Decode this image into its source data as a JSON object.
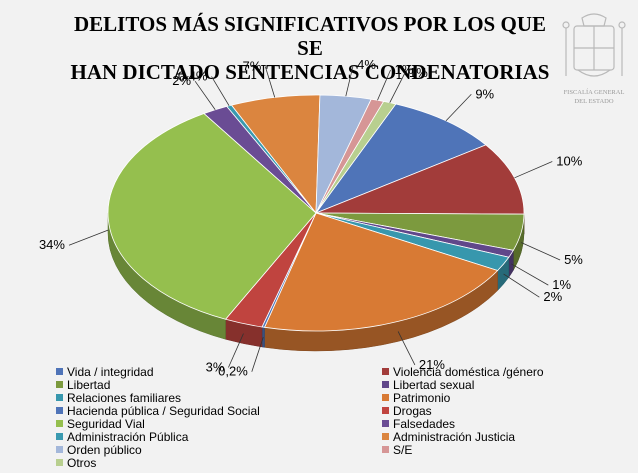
{
  "chart_data": {
    "type": "pie",
    "title": "DELITOS MÁS SIGNIFICATIVOS POR LOS QUE SE HAN DICTADO SENTENCIAS CONDENATORIAS",
    "legend_position": "bottom",
    "start_category": "Hacienda pública / Seguridad Social",
    "slices": [
      {
        "name": "Vida / integridad",
        "value": 9,
        "label": "9%",
        "color": "#4f74b8"
      },
      {
        "name": "Violencia doméstica /género",
        "value": 10,
        "label": "10%",
        "color": "#a23c3a"
      },
      {
        "name": "Libertad",
        "value": 5,
        "label": "5%",
        "color": "#7c9a3e"
      },
      {
        "name": "Libertad sexual",
        "value": 1,
        "label": "1%",
        "color": "#60478a"
      },
      {
        "name": "Relaciones familiares",
        "value": 2,
        "label": "2%",
        "color": "#3797ad"
      },
      {
        "name": "Patrimonio",
        "value": 21,
        "label": "21%",
        "color": "#d87a34"
      },
      {
        "name": "Hacienda pública / Seguridad Social",
        "value": 0.2,
        "label": "0,2%",
        "color": "#4f74b8"
      },
      {
        "name": "Drogas",
        "value": 3,
        "label": "3%",
        "color": "#c0443f"
      },
      {
        "name": "Seguridad Vial",
        "value": 34,
        "label": "34%",
        "color": "#95bf4e"
      },
      {
        "name": "Falsedades",
        "value": 2,
        "label": "2%",
        "color": "#6a4c94"
      },
      {
        "name": "Administración Pública",
        "value": 0.4,
        "label": "0,4%",
        "color": "#3a9ab0"
      },
      {
        "name": "Administración Justicia",
        "value": 7,
        "label": "7%",
        "color": "#db853f"
      },
      {
        "name": "Orden público",
        "value": 4,
        "label": "4%",
        "color": "#a3b7da"
      },
      {
        "name": "S/E",
        "value": 1,
        "label": "1%",
        "color": "#d69696"
      },
      {
        "name": "Otros",
        "value": 1,
        "label": "1%",
        "color": "#b8cf8f"
      }
    ]
  },
  "title_lines": [
    "DELITOS MÁS SIGNIFICATIVOS POR LOS QUE SE",
    "HAN DICTADO SENTENCIAS CONDENATORIAS"
  ],
  "emblem": {
    "text_lines": [
      "FISCALÍA GENERAL",
      "DEL ESTADO"
    ]
  },
  "legend": [
    {
      "label": "Vida / integridad",
      "color": "#4f74b8"
    },
    {
      "label": "Violencia doméstica /género",
      "color": "#a23c3a"
    },
    {
      "label": "Libertad",
      "color": "#7c9a3e"
    },
    {
      "label": "Libertad sexual",
      "color": "#60478a"
    },
    {
      "label": "Relaciones familiares",
      "color": "#3797ad"
    },
    {
      "label": "Patrimonio",
      "color": "#d87a34"
    },
    {
      "label": "Hacienda pública / Seguridad Social",
      "color": "#4f74b8"
    },
    {
      "label": "Drogas",
      "color": "#c0443f"
    },
    {
      "label": "Seguridad Vial",
      "color": "#95bf4e"
    },
    {
      "label": "Falsedades",
      "color": "#6a4c94"
    },
    {
      "label": "Administración Pública",
      "color": "#3a9ab0"
    },
    {
      "label": "Administración Justicia",
      "color": "#db853f"
    },
    {
      "label": "Orden público",
      "color": "#a3b7da"
    },
    {
      "label": "S/E",
      "color": "#d69696"
    },
    {
      "label": "Otros",
      "color": "#b8cf8f"
    }
  ]
}
